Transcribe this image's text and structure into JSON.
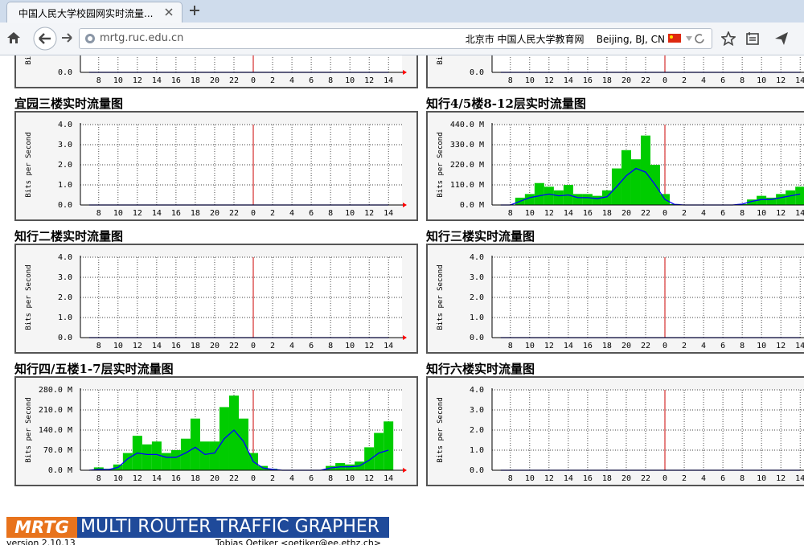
{
  "browser": {
    "tab_title": "中国人民大学校园网实时流量...",
    "url": "mrtg.ruc.edu.cn",
    "location": "北京市 中国人民大学教育网    Beijing, BJ, CN"
  },
  "x_axis": {
    "xlim": [
      6.1,
      39.4
    ],
    "day_break": 24,
    "xticks": [
      8,
      10,
      12,
      14,
      16,
      18,
      20,
      22,
      {
        "value": 24,
        "label": "0"
      },
      {
        "value": 26,
        "label": "2"
      },
      {
        "value": 28,
        "label": "4"
      },
      {
        "value": 30,
        "label": "6"
      },
      {
        "value": 32,
        "label": "8"
      },
      {
        "value": 34,
        "label": "10"
      },
      {
        "value": 36,
        "label": "12"
      },
      {
        "value": 38,
        "label": "14"
      }
    ]
  },
  "y_label": "Bits per Second",
  "graphs": [
    {
      "type": "bar",
      "ylim": [
        0,
        4
      ],
      "yticks": [
        {
          "value": 0,
          "label": "0.0"
        }
      ],
      "in_color": "#00cc00",
      "out_color": "#0000ff",
      "x": [
        7,
        38
      ],
      "in": [
        0,
        0
      ],
      "out": [
        0,
        0
      ]
    },
    {
      "type": "bar",
      "ylim": [
        0,
        4
      ],
      "yticks": [
        {
          "value": 0,
          "label": "0.0"
        }
      ],
      "in_color": "#00cc00",
      "out_color": "#0000ff",
      "x": [
        7,
        38
      ],
      "in": [
        0,
        0
      ],
      "out": [
        0,
        0
      ]
    },
    {
      "type": "bar",
      "title": "宜园三楼实时流量图",
      "ylim": [
        0,
        4
      ],
      "yticks": [
        {
          "value": 4,
          "label": "4.0"
        },
        {
          "value": 3,
          "label": "3.0"
        },
        {
          "value": 2,
          "label": "2.0"
        },
        {
          "value": 1,
          "label": "1.0"
        },
        {
          "value": 0,
          "label": "0.0"
        }
      ],
      "in_color": "#00cc00",
      "out_color": "#0000ff",
      "x": [
        7,
        38
      ],
      "in": [
        0,
        0
      ],
      "out": [
        0,
        0
      ]
    },
    {
      "type": "bar",
      "title": "知行4/5楼8-12层实时流量图",
      "ylim": [
        0,
        440
      ],
      "yticks": [
        {
          "value": 440,
          "label": "440.0 M"
        },
        {
          "value": 330,
          "label": "330.0 M"
        },
        {
          "value": 220,
          "label": "220.0 M"
        },
        {
          "value": 110,
          "label": "110.0 M"
        },
        {
          "value": 0,
          "label": "0.0 M"
        }
      ],
      "in_color": "#00cc00",
      "out_color": "#0000ff",
      "x": [
        7,
        8,
        9,
        10,
        11,
        12,
        13,
        14,
        15,
        16,
        17,
        18,
        19,
        20,
        21,
        22,
        23,
        24,
        25,
        26,
        27,
        28,
        29,
        30,
        31,
        32,
        33,
        34,
        35,
        36,
        37,
        38
      ],
      "in": [
        0,
        0,
        40,
        60,
        120,
        100,
        80,
        110,
        60,
        60,
        50,
        80,
        200,
        300,
        250,
        380,
        220,
        60,
        5,
        0,
        0,
        0,
        0,
        0,
        0,
        5,
        30,
        50,
        40,
        60,
        80,
        100
      ],
      "out": [
        0,
        0,
        20,
        40,
        50,
        60,
        50,
        55,
        40,
        40,
        35,
        45,
        100,
        160,
        200,
        180,
        110,
        30,
        3,
        0,
        0,
        0,
        0,
        0,
        0,
        5,
        20,
        30,
        30,
        40,
        50,
        60
      ]
    },
    {
      "type": "bar",
      "title": "知行二楼实时流量图",
      "ylim": [
        0,
        4
      ],
      "yticks": [
        {
          "value": 4,
          "label": "4.0"
        },
        {
          "value": 3,
          "label": "3.0"
        },
        {
          "value": 2,
          "label": "2.0"
        },
        {
          "value": 1,
          "label": "1.0"
        },
        {
          "value": 0,
          "label": "0.0"
        }
      ],
      "in_color": "#00cc00",
      "out_color": "#0000ff",
      "x": [
        7,
        38
      ],
      "in": [
        0,
        0
      ],
      "out": [
        0,
        0
      ]
    },
    {
      "type": "bar",
      "title": "知行三楼实时流量图",
      "ylim": [
        0,
        4
      ],
      "yticks": [
        {
          "value": 4,
          "label": "4.0"
        },
        {
          "value": 3,
          "label": "3.0"
        },
        {
          "value": 2,
          "label": "2.0"
        },
        {
          "value": 1,
          "label": "1.0"
        },
        {
          "value": 0,
          "label": "0.0"
        }
      ],
      "in_color": "#00cc00",
      "out_color": "#0000ff",
      "x": [
        7,
        38
      ],
      "in": [
        0,
        0
      ],
      "out": [
        0,
        0
      ]
    },
    {
      "type": "bar",
      "title": "知行四/五楼1-7层实时流量图",
      "ylim": [
        0,
        280
      ],
      "yticks": [
        {
          "value": 280,
          "label": "280.0 M"
        },
        {
          "value": 210,
          "label": "210.0 M"
        },
        {
          "value": 140,
          "label": "140.0 M"
        },
        {
          "value": 70,
          "label": "70.0 M"
        },
        {
          "value": 0,
          "label": "0.0 M"
        }
      ],
      "in_color": "#00cc00",
      "out_color": "#0000ff",
      "x": [
        7,
        8,
        9,
        10,
        11,
        12,
        13,
        14,
        15,
        16,
        17,
        18,
        19,
        20,
        21,
        22,
        23,
        24,
        25,
        26,
        27,
        28,
        29,
        30,
        31,
        32,
        33,
        34,
        35,
        36,
        37,
        38
      ],
      "in": [
        0,
        10,
        5,
        20,
        60,
        120,
        90,
        100,
        60,
        70,
        110,
        180,
        100,
        100,
        220,
        260,
        180,
        60,
        15,
        5,
        0,
        0,
        0,
        0,
        0,
        15,
        25,
        20,
        30,
        80,
        130,
        170
      ],
      "out": [
        0,
        3,
        2,
        10,
        40,
        60,
        55,
        55,
        45,
        45,
        60,
        80,
        55,
        60,
        110,
        140,
        100,
        30,
        8,
        3,
        0,
        0,
        0,
        0,
        0,
        8,
        12,
        12,
        15,
        35,
        60,
        70
      ]
    },
    {
      "type": "bar",
      "title": "知行六楼实时流量图",
      "ylim": [
        0,
        4
      ],
      "yticks": [
        {
          "value": 4,
          "label": "4.0"
        },
        {
          "value": 3,
          "label": "3.0"
        },
        {
          "value": 2,
          "label": "2.0"
        },
        {
          "value": 1,
          "label": "1.0"
        },
        {
          "value": 0,
          "label": "0.0"
        }
      ],
      "in_color": "#00cc00",
      "out_color": "#0000ff",
      "x": [
        7,
        38
      ],
      "in": [
        0,
        0
      ],
      "out": [
        0,
        0
      ]
    }
  ],
  "footer": {
    "logo_mark": "MRTG",
    "logo_text": "MULTI ROUTER TRAFFIC GRAPHER",
    "version": "version 2.10.13",
    "author": "Tobias Oetiker <oetiker@ee.ethz.ch>"
  }
}
